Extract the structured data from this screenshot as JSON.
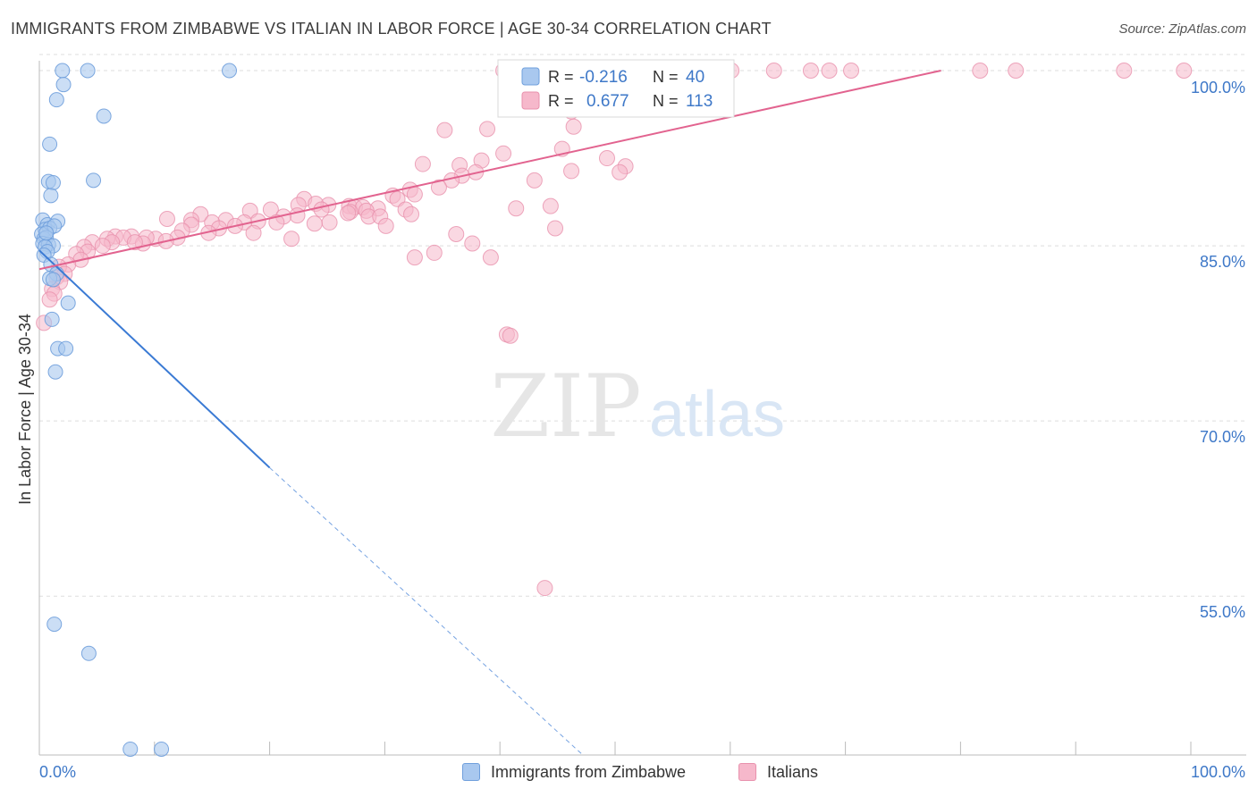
{
  "header": {
    "title": "IMMIGRANTS FROM ZIMBABWE VS ITALIAN IN LABOR FORCE | AGE 30-34 CORRELATION CHART",
    "source": "Source: ZipAtlas.com"
  },
  "watermark": {
    "zip": "ZIP",
    "atlas": "atlas"
  },
  "colors": {
    "blue_fill": "#a9c8ef",
    "blue_stroke": "#6f9fdc",
    "blue_line": "#3a7ad4",
    "pink_fill": "#f6b8cb",
    "pink_stroke": "#e891ad",
    "pink_line": "#e2638f",
    "tick_label": "#3e78c8",
    "grid": "#dddddd"
  },
  "legend_box": {
    "rows": [
      {
        "r_label": "R =",
        "r_value": "-0.216",
        "n_label": "N =",
        "n_value": "40"
      },
      {
        "r_label": "R =",
        "r_value": "0.677",
        "n_label": "N =",
        "n_value": "113"
      }
    ]
  },
  "chart_data": {
    "type": "scatter",
    "title": "IMMIGRANTS FROM ZIMBABWE VS ITALIAN IN LABOR FORCE | AGE 30-34 CORRELATION CHART",
    "xlabel": "",
    "ylabel": "In Labor Force | Age 30-34",
    "xlim": [
      0,
      100
    ],
    "ylim": [
      41.4,
      101.3
    ],
    "x_tick_labels": [
      "0.0%",
      "100.0%"
    ],
    "y_ticks": [
      55,
      70,
      85,
      100
    ],
    "y_tick_labels": [
      "55.0%",
      "70.0%",
      "85.0%",
      "100.0%"
    ],
    "grid": true,
    "legend_position": "bottom",
    "series": [
      {
        "name": "Immigrants from Zimbabwe",
        "color": "#a9c8ef",
        "r": -0.216,
        "n": 40,
        "trend": {
          "x": [
            0,
            20
          ],
          "y": [
            84.6,
            66.0
          ]
        },
        "trend_extrapolated": {
          "x": [
            20,
            47.2
          ],
          "y": [
            66.0,
            41.4
          ]
        },
        "points": [
          [
            2.0,
            100.0
          ],
          [
            4.2,
            100.0
          ],
          [
            16.5,
            100.0
          ],
          [
            2.1,
            98.8
          ],
          [
            1.5,
            97.5
          ],
          [
            5.6,
            96.1
          ],
          [
            0.9,
            93.7
          ],
          [
            4.7,
            90.6
          ],
          [
            0.8,
            90.5
          ],
          [
            1.2,
            90.4
          ],
          [
            1.0,
            89.3
          ],
          [
            0.3,
            87.2
          ],
          [
            0.7,
            86.8
          ],
          [
            1.6,
            87.1
          ],
          [
            0.5,
            86.4
          ],
          [
            0.9,
            86.5
          ],
          [
            1.3,
            86.7
          ],
          [
            0.2,
            86.0
          ],
          [
            0.4,
            85.6
          ],
          [
            0.6,
            85.7
          ],
          [
            0.3,
            85.2
          ],
          [
            0.8,
            85.1
          ],
          [
            1.2,
            85.0
          ],
          [
            0.5,
            84.9
          ],
          [
            0.7,
            84.5
          ],
          [
            0.4,
            84.2
          ],
          [
            1.0,
            83.4
          ],
          [
            1.5,
            82.6
          ],
          [
            0.9,
            82.2
          ],
          [
            1.2,
            82.1
          ],
          [
            2.5,
            80.1
          ],
          [
            1.1,
            78.7
          ],
          [
            1.6,
            76.2
          ],
          [
            2.3,
            76.2
          ],
          [
            1.4,
            74.2
          ],
          [
            1.3,
            52.6
          ],
          [
            4.3,
            50.1
          ],
          [
            7.9,
            41.9
          ],
          [
            10.6,
            41.9
          ],
          [
            0.6,
            86.1
          ]
        ]
      },
      {
        "name": "Italians",
        "color": "#f6b8cb",
        "r": 0.677,
        "n": 113,
        "trend": {
          "x": [
            0,
            78.3
          ],
          "y": [
            83.0,
            100.0
          ]
        },
        "points": [
          [
            40.3,
            100.0
          ],
          [
            41.7,
            100.0
          ],
          [
            43.9,
            100.0
          ],
          [
            50.2,
            100.0
          ],
          [
            51.4,
            100.0
          ],
          [
            53.6,
            100.0
          ],
          [
            54.0,
            100.0
          ],
          [
            60.1,
            100.0
          ],
          [
            63.8,
            100.0
          ],
          [
            67.0,
            100.0
          ],
          [
            68.6,
            100.0
          ],
          [
            70.5,
            100.0
          ],
          [
            81.7,
            100.0
          ],
          [
            84.8,
            100.0
          ],
          [
            94.2,
            100.0
          ],
          [
            99.4,
            100.0
          ],
          [
            46.2,
            96.5
          ],
          [
            46.4,
            95.2
          ],
          [
            35.2,
            94.9
          ],
          [
            38.9,
            95.0
          ],
          [
            40.3,
            92.9
          ],
          [
            38.4,
            92.3
          ],
          [
            33.3,
            92.0
          ],
          [
            36.5,
            91.9
          ],
          [
            46.2,
            91.4
          ],
          [
            50.9,
            91.8
          ],
          [
            37.9,
            91.3
          ],
          [
            36.7,
            91.0
          ],
          [
            35.8,
            90.6
          ],
          [
            43.0,
            90.6
          ],
          [
            34.7,
            90.0
          ],
          [
            32.2,
            89.8
          ],
          [
            32.6,
            89.4
          ],
          [
            30.7,
            89.3
          ],
          [
            31.1,
            89.0
          ],
          [
            23.0,
            89.0
          ],
          [
            22.5,
            88.5
          ],
          [
            25.1,
            88.5
          ],
          [
            24.0,
            88.6
          ],
          [
            26.9,
            88.4
          ],
          [
            27.4,
            88.3
          ],
          [
            28.1,
            88.3
          ],
          [
            29.4,
            88.2
          ],
          [
            24.5,
            88.1
          ],
          [
            31.8,
            88.1
          ],
          [
            18.3,
            88.0
          ],
          [
            20.1,
            88.1
          ],
          [
            28.4,
            88.0
          ],
          [
            27.0,
            87.9
          ],
          [
            26.8,
            87.8
          ],
          [
            14.0,
            87.7
          ],
          [
            22.4,
            87.6
          ],
          [
            28.6,
            87.5
          ],
          [
            21.2,
            87.5
          ],
          [
            29.6,
            87.5
          ],
          [
            11.1,
            87.3
          ],
          [
            13.2,
            87.2
          ],
          [
            16.2,
            87.2
          ],
          [
            19.0,
            87.1
          ],
          [
            17.8,
            87.0
          ],
          [
            15.0,
            87.0
          ],
          [
            20.6,
            87.0
          ],
          [
            25.2,
            87.0
          ],
          [
            23.9,
            86.9
          ],
          [
            13.2,
            86.8
          ],
          [
            17.0,
            86.7
          ],
          [
            30.1,
            86.7
          ],
          [
            15.6,
            86.5
          ],
          [
            12.4,
            86.3
          ],
          [
            18.6,
            86.1
          ],
          [
            14.7,
            86.1
          ],
          [
            12.0,
            85.7
          ],
          [
            10.1,
            85.6
          ],
          [
            8.0,
            85.8
          ],
          [
            9.3,
            85.7
          ],
          [
            6.6,
            85.8
          ],
          [
            7.3,
            85.7
          ],
          [
            5.9,
            85.6
          ],
          [
            11.0,
            85.4
          ],
          [
            9.0,
            85.2
          ],
          [
            8.3,
            85.3
          ],
          [
            6.3,
            85.3
          ],
          [
            4.6,
            85.3
          ],
          [
            5.5,
            85.0
          ],
          [
            3.9,
            84.9
          ],
          [
            4.2,
            84.5
          ],
          [
            3.2,
            84.3
          ],
          [
            3.6,
            83.8
          ],
          [
            2.5,
            83.4
          ],
          [
            1.7,
            83.2
          ],
          [
            2.2,
            82.6
          ],
          [
            1.5,
            82.3
          ],
          [
            1.8,
            81.9
          ],
          [
            1.1,
            81.3
          ],
          [
            1.3,
            80.9
          ],
          [
            0.9,
            80.4
          ],
          [
            0.4,
            78.4
          ],
          [
            32.6,
            84.0
          ],
          [
            32.3,
            87.7
          ],
          [
            34.3,
            84.4
          ],
          [
            36.2,
            86.0
          ],
          [
            37.6,
            85.2
          ],
          [
            44.4,
            88.4
          ],
          [
            44.8,
            86.5
          ],
          [
            39.2,
            84.0
          ],
          [
            41.4,
            88.2
          ],
          [
            45.4,
            93.3
          ],
          [
            49.3,
            92.5
          ],
          [
            50.4,
            91.3
          ],
          [
            40.6,
            77.4
          ],
          [
            40.9,
            77.3
          ],
          [
            43.9,
            55.7
          ],
          [
            21.9,
            85.6
          ]
        ]
      }
    ]
  },
  "legend_bottom": [
    {
      "label": "Immigrants from Zimbabwe"
    },
    {
      "label": "Italians"
    }
  ]
}
